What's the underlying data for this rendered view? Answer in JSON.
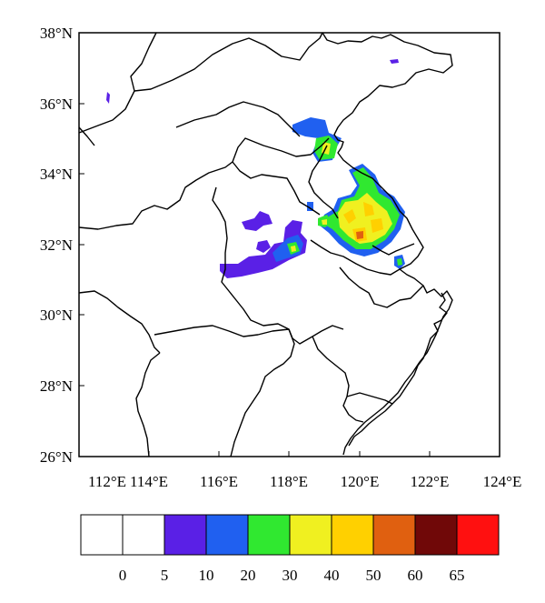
{
  "map": {
    "lat_labels": [
      "38°N",
      "36°N",
      "34°N",
      "32°N",
      "30°N",
      "28°N",
      "26°N"
    ],
    "lon_labels": [
      "112°E",
      "114°E",
      "116°E",
      "118°E",
      "120°E",
      "122°E",
      "124°E"
    ],
    "lat_range": [
      26,
      38
    ],
    "lon_range": [
      112,
      124
    ]
  },
  "legend": {
    "thresholds": [
      "0",
      "5",
      "10",
      "20",
      "30",
      "40",
      "50",
      "60",
      "65"
    ],
    "colors": [
      "#ffffff",
      "#ffffff",
      "#5a20e6",
      "#2060f0",
      "#30e830",
      "#f0f020",
      "#ffd000",
      "#e06010",
      "#700808",
      "#ff1010"
    ]
  }
}
